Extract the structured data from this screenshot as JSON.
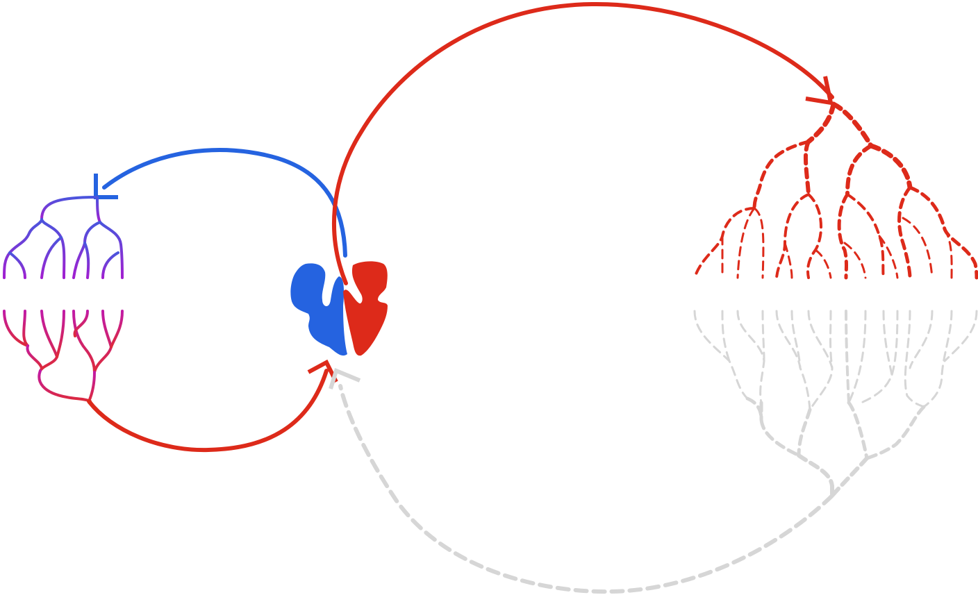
{
  "diagram": {
    "type": "circulation-schematic",
    "colors": {
      "arterial": "#dd2a1a",
      "venous": "#2563e0",
      "capillary_top": "#8a2fd6",
      "capillary_bottom": "#d1207a",
      "mixed": "#dd2a1a",
      "faded": "#d6d6d6",
      "background": "#ffffff"
    },
    "parts": [
      {
        "name": "heart",
        "icon": "heart-icon"
      },
      {
        "name": "pulmonary-artery"
      },
      {
        "name": "pulmonary-vein"
      },
      {
        "name": "lung-capillary-network"
      },
      {
        "name": "aorta"
      },
      {
        "name": "systemic-arterial-tree"
      },
      {
        "name": "systemic-venous-tree"
      },
      {
        "name": "vena-cava-return"
      }
    ]
  }
}
